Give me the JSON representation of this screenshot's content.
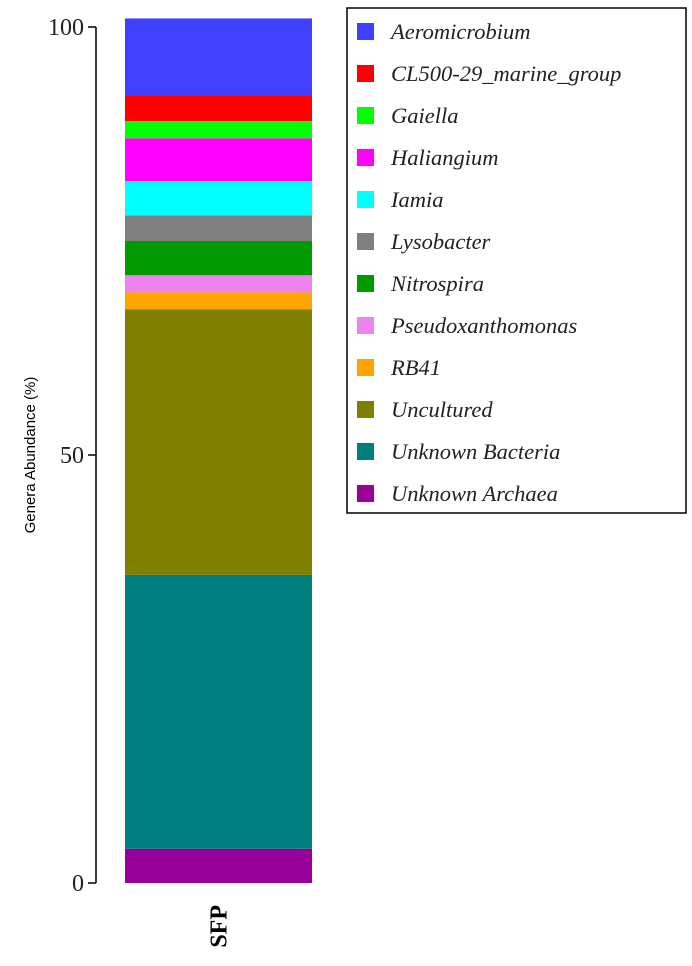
{
  "chart_data": {
    "type": "stacked-bar",
    "categories": [
      "SFP"
    ],
    "ylabel": "Genera Abundance (%)",
    "xlabel": "",
    "ylim": [
      0,
      100
    ],
    "yticks": [
      0,
      50,
      100
    ],
    "legend_position": "top-right",
    "series": [
      {
        "name": "Unknown Archaea",
        "color": "#990099",
        "values": [
          4.0
        ]
      },
      {
        "name": "Unknown Bacteria",
        "color": "#007F7F",
        "values": [
          32.0
        ]
      },
      {
        "name": "Uncultured",
        "color": "#7F7F00",
        "values": [
          31.0
        ]
      },
      {
        "name": "RB41",
        "color": "#FFA500",
        "values": [
          2.0
        ]
      },
      {
        "name": "Pseudoxanthomonas",
        "color": "#EE82EE",
        "values": [
          2.0
        ]
      },
      {
        "name": "Nitrospira",
        "color": "#009900",
        "values": [
          4.0
        ]
      },
      {
        "name": "Lysobacter",
        "color": "#808080",
        "values": [
          3.0
        ]
      },
      {
        "name": "Iamia",
        "color": "#00FFFF",
        "values": [
          4.0
        ]
      },
      {
        "name": "Haliangium",
        "color": "#FF00FF",
        "values": [
          5.0
        ]
      },
      {
        "name": "Gaiella",
        "color": "#00FF00",
        "values": [
          2.0
        ]
      },
      {
        "name": "CL500-29_marine_group",
        "color": "#FF0000",
        "values": [
          3.0
        ]
      },
      {
        "name": "Aeromicrobium",
        "color": "#4040FF",
        "values": [
          9.0
        ]
      }
    ],
    "legend_order": [
      "Aeromicrobium",
      "CL500-29_marine_group",
      "Gaiella",
      "Haliangium",
      "Iamia",
      "Lysobacter",
      "Nitrospira",
      "Pseudoxanthomonas",
      "RB41",
      "Uncultured",
      "Unknown Bacteria",
      "Unknown Archaea"
    ]
  }
}
